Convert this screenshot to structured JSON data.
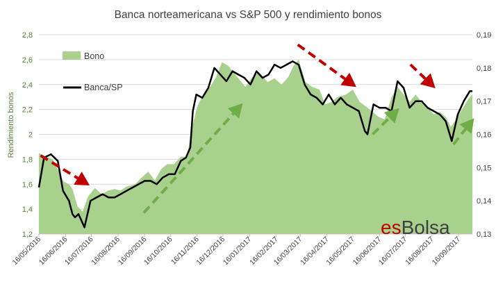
{
  "chart_data": {
    "type": "area",
    "title": "Banca norteamericana vs S&P 500 y rendimiento bonos",
    "ylabel": "Rendimiento bonos",
    "y2label": "",
    "ylim": [
      1.2,
      2.8
    ],
    "y_ticks": [
      "1,2",
      "1,4",
      "1,6",
      "1,8",
      "2",
      "2,2",
      "2,4",
      "2,6",
      "2,8"
    ],
    "y2lim": [
      0.13,
      0.19
    ],
    "y2_ticks": [
      "0,13",
      "0,14",
      "0,15",
      "0,16",
      "0,17",
      "0,18",
      "0,19"
    ],
    "x_ticks": [
      "16/05/2016",
      "16/06/2016",
      "16/07/2016",
      "16/08/2016",
      "16/09/2016",
      "16/10/2016",
      "16/11/2016",
      "16/12/2016",
      "16/01/2017",
      "16/02/2017",
      "16/03/2017",
      "16/04/2017",
      "16/05/2017",
      "16/06/2017",
      "16/07/2017",
      "16/08/2017",
      "16/09/2017"
    ],
    "grid": "horizontal",
    "legend": "top-left",
    "watermark": {
      "prefix": "es",
      "suffix": "Bolsa"
    },
    "colors": {
      "bono": "#a9d18e",
      "banca": "#000000",
      "down_arrow": "#c00000",
      "up_arrow": "#70ad47",
      "left_axis": "#548235",
      "watermark_prefix": "#c00000",
      "watermark_suffix": "#404040"
    },
    "series": [
      {
        "name": "Bono",
        "axis": "left",
        "style": "area",
        "x": [
          "2016-05-16",
          "2016-05-24",
          "2016-06-01",
          "2016-06-08",
          "2016-06-14",
          "2016-06-20",
          "2016-06-24",
          "2016-06-30",
          "2016-07-06",
          "2016-07-12",
          "2016-07-20",
          "2016-07-28",
          "2016-08-05",
          "2016-08-12",
          "2016-08-19",
          "2016-08-26",
          "2016-09-05",
          "2016-09-12",
          "2016-09-20",
          "2016-09-28",
          "2016-10-05",
          "2016-10-12",
          "2016-10-20",
          "2016-10-28",
          "2016-11-04",
          "2016-11-10",
          "2016-11-16",
          "2016-11-23",
          "2016-12-01",
          "2016-12-08",
          "2016-12-15",
          "2016-12-22",
          "2017-01-03",
          "2017-01-11",
          "2017-01-19",
          "2017-01-27",
          "2017-02-06",
          "2017-02-14",
          "2017-02-22",
          "2017-03-02",
          "2017-03-08",
          "2017-03-14",
          "2017-03-22",
          "2017-03-30",
          "2017-04-07",
          "2017-04-14",
          "2017-04-21",
          "2017-04-28",
          "2017-05-08",
          "2017-05-16",
          "2017-05-24",
          "2017-06-01",
          "2017-06-08",
          "2017-06-15",
          "2017-06-22",
          "2017-06-30",
          "2017-07-07",
          "2017-07-14",
          "2017-07-21",
          "2017-07-28",
          "2017-08-04",
          "2017-08-11",
          "2017-08-18",
          "2017-08-25",
          "2017-09-01",
          "2017-09-07",
          "2017-09-13",
          "2017-09-20",
          "2017-09-27",
          "2017-10-02"
        ],
        "values": [
          1.85,
          1.82,
          1.8,
          1.7,
          1.62,
          1.6,
          1.56,
          1.42,
          1.38,
          1.5,
          1.57,
          1.52,
          1.55,
          1.56,
          1.55,
          1.58,
          1.6,
          1.65,
          1.7,
          1.63,
          1.72,
          1.76,
          1.76,
          1.82,
          1.82,
          2.05,
          2.22,
          2.32,
          2.38,
          2.46,
          2.58,
          2.55,
          2.45,
          2.38,
          2.46,
          2.5,
          2.42,
          2.45,
          2.4,
          2.46,
          2.55,
          2.6,
          2.42,
          2.38,
          2.36,
          2.24,
          2.26,
          2.3,
          2.32,
          2.36,
          2.26,
          2.22,
          2.18,
          2.14,
          2.12,
          2.3,
          2.38,
          2.32,
          2.26,
          2.32,
          2.26,
          2.22,
          2.16,
          2.18,
          2.14,
          2.06,
          2.12,
          2.2,
          2.28,
          2.32
        ]
      },
      {
        "name": "Banca/SP",
        "axis": "right",
        "style": "line",
        "x": [
          "2016-05-16",
          "2016-05-22",
          "2016-05-30",
          "2016-06-07",
          "2016-06-13",
          "2016-06-20",
          "2016-06-24",
          "2016-06-27",
          "2016-07-01",
          "2016-07-08",
          "2016-07-15",
          "2016-07-22",
          "2016-07-29",
          "2016-08-05",
          "2016-08-12",
          "2016-08-19",
          "2016-08-26",
          "2016-09-02",
          "2016-09-09",
          "2016-09-16",
          "2016-09-23",
          "2016-09-30",
          "2016-10-07",
          "2016-10-14",
          "2016-10-21",
          "2016-10-28",
          "2016-11-03",
          "2016-11-08",
          "2016-11-11",
          "2016-11-15",
          "2016-11-22",
          "2016-11-29",
          "2016-12-06",
          "2016-12-13",
          "2016-12-20",
          "2016-12-27",
          "2017-01-03",
          "2017-01-10",
          "2017-01-17",
          "2017-01-24",
          "2017-01-31",
          "2017-02-07",
          "2017-02-14",
          "2017-02-21",
          "2017-02-28",
          "2017-03-07",
          "2017-03-14",
          "2017-03-21",
          "2017-03-28",
          "2017-04-04",
          "2017-04-11",
          "2017-04-18",
          "2017-04-25",
          "2017-05-02",
          "2017-05-09",
          "2017-05-16",
          "2017-05-23",
          "2017-05-30",
          "2017-06-02",
          "2017-06-09",
          "2017-06-16",
          "2017-06-23",
          "2017-06-30",
          "2017-07-07",
          "2017-07-14",
          "2017-07-21",
          "2017-07-28",
          "2017-08-04",
          "2017-08-11",
          "2017-08-18",
          "2017-08-25",
          "2017-09-01",
          "2017-09-08",
          "2017-09-15",
          "2017-09-22",
          "2017-09-29",
          "2017-10-02"
        ],
        "values": [
          0.144,
          0.153,
          0.154,
          0.152,
          0.143,
          0.14,
          0.136,
          0.135,
          0.136,
          0.132,
          0.14,
          0.141,
          0.142,
          0.141,
          0.141,
          0.142,
          0.143,
          0.144,
          0.145,
          0.146,
          0.146,
          0.145,
          0.147,
          0.148,
          0.148,
          0.152,
          0.153,
          0.156,
          0.167,
          0.172,
          0.171,
          0.174,
          0.18,
          0.178,
          0.176,
          0.179,
          0.178,
          0.177,
          0.175,
          0.179,
          0.177,
          0.178,
          0.181,
          0.18,
          0.181,
          0.182,
          0.181,
          0.175,
          0.172,
          0.171,
          0.169,
          0.172,
          0.169,
          0.171,
          0.169,
          0.168,
          0.167,
          0.161,
          0.16,
          0.169,
          0.168,
          0.168,
          0.167,
          0.176,
          0.174,
          0.168,
          0.17,
          0.17,
          0.168,
          0.167,
          0.166,
          0.164,
          0.158,
          0.166,
          0.17,
          0.173,
          0.173
        ]
      }
    ],
    "trend_arrows": [
      {
        "kind": "down",
        "from": [
          "2016-05-18",
          1.83
        ],
        "to": [
          "2016-07-14",
          1.59
        ]
      },
      {
        "kind": "up",
        "from": [
          "2016-09-15",
          1.37
        ],
        "to": [
          "2017-01-08",
          2.25
        ]
      },
      {
        "kind": "down",
        "from": [
          "2017-03-13",
          2.72
        ],
        "to": [
          "2017-05-20",
          2.38
        ]
      },
      {
        "kind": "up",
        "from": [
          "2017-06-08",
          2.0
        ],
        "to": [
          "2017-07-09",
          2.21
        ]
      },
      {
        "kind": "down",
        "from": [
          "2017-07-22",
          2.56
        ],
        "to": [
          "2017-08-20",
          2.37
        ]
      },
      {
        "kind": "up",
        "from": [
          "2017-09-10",
          1.92
        ],
        "to": [
          "2017-10-04",
          2.13
        ]
      }
    ]
  }
}
